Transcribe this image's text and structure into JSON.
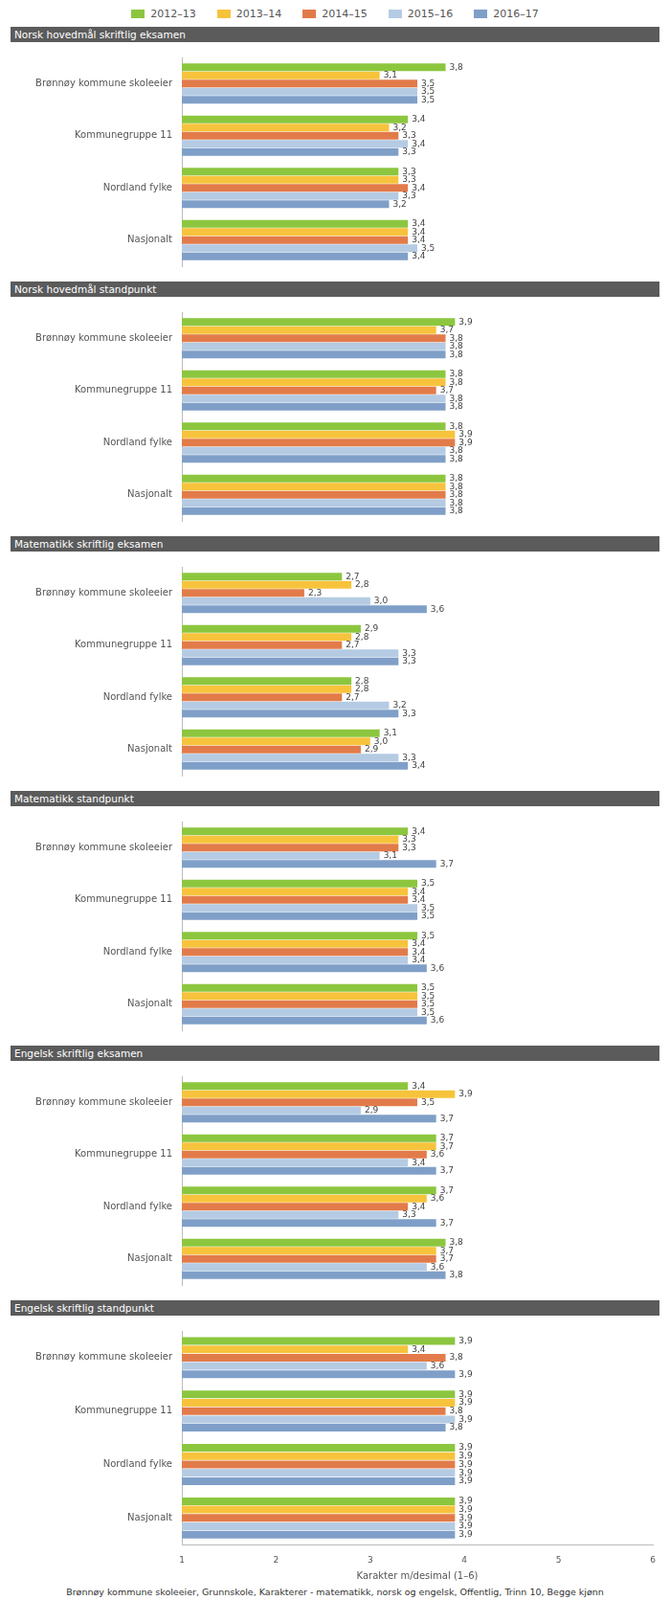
{
  "chart_data": [
    {
      "type": "bar",
      "title": "Norsk hovedmål skriftlig eksamen",
      "orientation": "horizontal",
      "legend": "top",
      "data_labels": true,
      "grid": false,
      "tick_labels": "y",
      "categories": [
        "Brønnøy kommune skoleeier",
        "Kommunegruppe 11",
        "Nordland fylke",
        "Nasjonalt"
      ],
      "xlim": [
        1,
        6
      ],
      "xticks": [
        1,
        2,
        3,
        4,
        5,
        6
      ],
      "series": [
        {
          "name": "2012–13",
          "color": "#8cc63f",
          "values": [
            3.8,
            3.4,
            3.3,
            3.4
          ],
          "value_labels": [
            "3,8",
            "3,4",
            "3,3",
            "3,4"
          ]
        },
        {
          "name": "2013–14",
          "color": "#f7c33c",
          "values": [
            3.1,
            3.2,
            3.3,
            3.4
          ],
          "value_labels": [
            "3,1",
            "3,2",
            "3,3",
            "3,4"
          ]
        },
        {
          "name": "2014–15",
          "color": "#e27b4a",
          "values": [
            3.5,
            3.3,
            3.4,
            3.4
          ],
          "value_labels": [
            "3,5",
            "3,3",
            "3,4",
            "3,4"
          ]
        },
        {
          "name": "2015–16",
          "color": "#b5cbe3",
          "values": [
            3.5,
            3.4,
            3.3,
            3.5
          ],
          "value_labels": [
            "3,5",
            "3,4",
            "3,3",
            "3,5"
          ]
        },
        {
          "name": "2016–17",
          "color": "#7f9fc8",
          "values": [
            3.5,
            3.3,
            3.2,
            3.4
          ],
          "value_labels": [
            "3,5",
            "3,3",
            "3,2",
            "3,4"
          ]
        }
      ]
    },
    {
      "type": "bar",
      "title": "Norsk hovedmål standpunkt",
      "orientation": "horizontal",
      "data_labels": true,
      "grid": false,
      "tick_labels": "y",
      "categories": [
        "Brønnøy kommune skoleeier",
        "Kommunegruppe 11",
        "Nordland fylke",
        "Nasjonalt"
      ],
      "xlim": [
        1,
        6
      ],
      "xticks": [
        1,
        2,
        3,
        4,
        5,
        6
      ],
      "series": [
        {
          "name": "2012–13",
          "color": "#8cc63f",
          "values": [
            3.9,
            3.8,
            3.8,
            3.8
          ],
          "value_labels": [
            "3,9",
            "3,8",
            "3,8",
            "3,8"
          ]
        },
        {
          "name": "2013–14",
          "color": "#f7c33c",
          "values": [
            3.7,
            3.8,
            3.9,
            3.8
          ],
          "value_labels": [
            "3,7",
            "3,8",
            "3,9",
            "3,8"
          ]
        },
        {
          "name": "2014–15",
          "color": "#e27b4a",
          "values": [
            3.8,
            3.7,
            3.9,
            3.8
          ],
          "value_labels": [
            "3,8",
            "3,7",
            "3,9",
            "3,8"
          ]
        },
        {
          "name": "2015–16",
          "color": "#b5cbe3",
          "values": [
            3.8,
            3.8,
            3.8,
            3.8
          ],
          "value_labels": [
            "3,8",
            "3,8",
            "3,8",
            "3,8"
          ]
        },
        {
          "name": "2016–17",
          "color": "#7f9fc8",
          "values": [
            3.8,
            3.8,
            3.8,
            3.8
          ],
          "value_labels": [
            "3,8",
            "3,8",
            "3,8",
            "3,8"
          ]
        }
      ]
    },
    {
      "type": "bar",
      "title": "Matematikk skriftlig eksamen",
      "orientation": "horizontal",
      "data_labels": true,
      "grid": false,
      "tick_labels": "y",
      "categories": [
        "Brønnøy kommune skoleeier",
        "Kommunegruppe 11",
        "Nordland fylke",
        "Nasjonalt"
      ],
      "xlim": [
        1,
        6
      ],
      "xticks": [
        1,
        2,
        3,
        4,
        5,
        6
      ],
      "series": [
        {
          "name": "2012–13",
          "color": "#8cc63f",
          "values": [
            2.7,
            2.9,
            2.8,
            3.1
          ],
          "value_labels": [
            "2,7",
            "2,9",
            "2,8",
            "3,1"
          ]
        },
        {
          "name": "2013–14",
          "color": "#f7c33c",
          "values": [
            2.8,
            2.8,
            2.8,
            3.0
          ],
          "value_labels": [
            "2,8",
            "2,8",
            "2,8",
            "3,0"
          ]
        },
        {
          "name": "2014–15",
          "color": "#e27b4a",
          "values": [
            2.3,
            2.7,
            2.7,
            2.9
          ],
          "value_labels": [
            "2,3",
            "2,7",
            "2,7",
            "2,9"
          ]
        },
        {
          "name": "2015–16",
          "color": "#b5cbe3",
          "values": [
            3.0,
            3.3,
            3.2,
            3.3
          ],
          "value_labels": [
            "3,0",
            "3,3",
            "3,2",
            "3,3"
          ]
        },
        {
          "name": "2016–17",
          "color": "#7f9fc8",
          "values": [
            3.6,
            3.3,
            3.3,
            3.4
          ],
          "value_labels": [
            "3,6",
            "3,3",
            "3,3",
            "3,4"
          ]
        }
      ]
    },
    {
      "type": "bar",
      "title": "Matematikk standpunkt",
      "orientation": "horizontal",
      "data_labels": true,
      "grid": false,
      "tick_labels": "y",
      "categories": [
        "Brønnøy kommune skoleeier",
        "Kommunegruppe 11",
        "Nordland fylke",
        "Nasjonalt"
      ],
      "xlim": [
        1,
        6
      ],
      "xticks": [
        1,
        2,
        3,
        4,
        5,
        6
      ],
      "series": [
        {
          "name": "2012–13",
          "color": "#8cc63f",
          "values": [
            3.4,
            3.5,
            3.5,
            3.5
          ],
          "value_labels": [
            "3,4",
            "3,5",
            "3,5",
            "3,5"
          ]
        },
        {
          "name": "2013–14",
          "color": "#f7c33c",
          "values": [
            3.3,
            3.4,
            3.4,
            3.5
          ],
          "value_labels": [
            "3,3",
            "3,4",
            "3,4",
            "3,5"
          ]
        },
        {
          "name": "2014–15",
          "color": "#e27b4a",
          "values": [
            3.3,
            3.4,
            3.4,
            3.5
          ],
          "value_labels": [
            "3,3",
            "3,4",
            "3,4",
            "3,5"
          ]
        },
        {
          "name": "2015–16",
          "color": "#b5cbe3",
          "values": [
            3.1,
            3.5,
            3.4,
            3.5
          ],
          "value_labels": [
            "3,1",
            "3,5",
            "3,4",
            "3,5"
          ]
        },
        {
          "name": "2016–17",
          "color": "#7f9fc8",
          "values": [
            3.7,
            3.5,
            3.6,
            3.6
          ],
          "value_labels": [
            "3,7",
            "3,5",
            "3,6",
            "3,6"
          ]
        }
      ]
    },
    {
      "type": "bar",
      "title": "Engelsk skriftlig eksamen",
      "orientation": "horizontal",
      "data_labels": true,
      "grid": false,
      "tick_labels": "y",
      "categories": [
        "Brønnøy kommune skoleeier",
        "Kommunegruppe 11",
        "Nordland fylke",
        "Nasjonalt"
      ],
      "xlim": [
        1,
        6
      ],
      "xticks": [
        1,
        2,
        3,
        4,
        5,
        6
      ],
      "series": [
        {
          "name": "2012–13",
          "color": "#8cc63f",
          "values": [
            3.4,
            3.7,
            3.7,
            3.8
          ],
          "value_labels": [
            "3,4",
            "3,7",
            "3,7",
            "3,8"
          ]
        },
        {
          "name": "2013–14",
          "color": "#f7c33c",
          "values": [
            3.9,
            3.7,
            3.6,
            3.7
          ],
          "value_labels": [
            "3,9",
            "3,7",
            "3,6",
            "3,7"
          ]
        },
        {
          "name": "2014–15",
          "color": "#e27b4a",
          "values": [
            3.5,
            3.6,
            3.4,
            3.7
          ],
          "value_labels": [
            "3,5",
            "3,6",
            "3,4",
            "3,7"
          ]
        },
        {
          "name": "2015–16",
          "color": "#b5cbe3",
          "values": [
            2.9,
            3.4,
            3.3,
            3.6
          ],
          "value_labels": [
            "2,9",
            "3,4",
            "3,3",
            "3,6"
          ]
        },
        {
          "name": "2016–17",
          "color": "#7f9fc8",
          "values": [
            3.7,
            3.7,
            3.7,
            3.8
          ],
          "value_labels": [
            "3,7",
            "3,7",
            "3,7",
            "3,8"
          ]
        }
      ]
    },
    {
      "type": "bar",
      "title": "Engelsk skriftlig standpunkt",
      "orientation": "horizontal",
      "data_labels": true,
      "grid": false,
      "categories": [
        "Brønnøy kommune skoleeier",
        "Kommunegruppe 11",
        "Nordland fylke",
        "Nasjonalt"
      ],
      "x_label": "Karakter m/desimal (1–6)",
      "xlim": [
        1,
        6
      ],
      "xticks": [
        1,
        2,
        3,
        4,
        5,
        6
      ],
      "series": [
        {
          "name": "2012–13",
          "color": "#8cc63f",
          "values": [
            3.9,
            3.9,
            3.9,
            3.9
          ],
          "value_labels": [
            "3,9",
            "3,9",
            "3,9",
            "3,9"
          ]
        },
        {
          "name": "2013–14",
          "color": "#f7c33c",
          "values": [
            3.4,
            3.9,
            3.9,
            3.9
          ],
          "value_labels": [
            "3,4",
            "3,9",
            "3,9",
            "3,9"
          ]
        },
        {
          "name": "2014–15",
          "color": "#e27b4a",
          "values": [
            3.8,
            3.8,
            3.9,
            3.9
          ],
          "value_labels": [
            "3,8",
            "3,8",
            "3,9",
            "3,9"
          ]
        },
        {
          "name": "2015–16",
          "color": "#b5cbe3",
          "values": [
            3.6,
            3.9,
            3.9,
            3.9
          ],
          "value_labels": [
            "3,6",
            "3,9",
            "3,9",
            "3,9"
          ]
        },
        {
          "name": "2016–17",
          "color": "#7f9fc8",
          "values": [
            3.9,
            3.8,
            3.9,
            3.9
          ],
          "value_labels": [
            "3,9",
            "3,8",
            "3,9",
            "3,9"
          ]
        }
      ]
    }
  ],
  "footer": "Brønnøy kommune skoleeier, Grunnskole, Karakterer - matematikk, norsk og engelsk, Offentlig, Trinn 10, Begge kjønn"
}
